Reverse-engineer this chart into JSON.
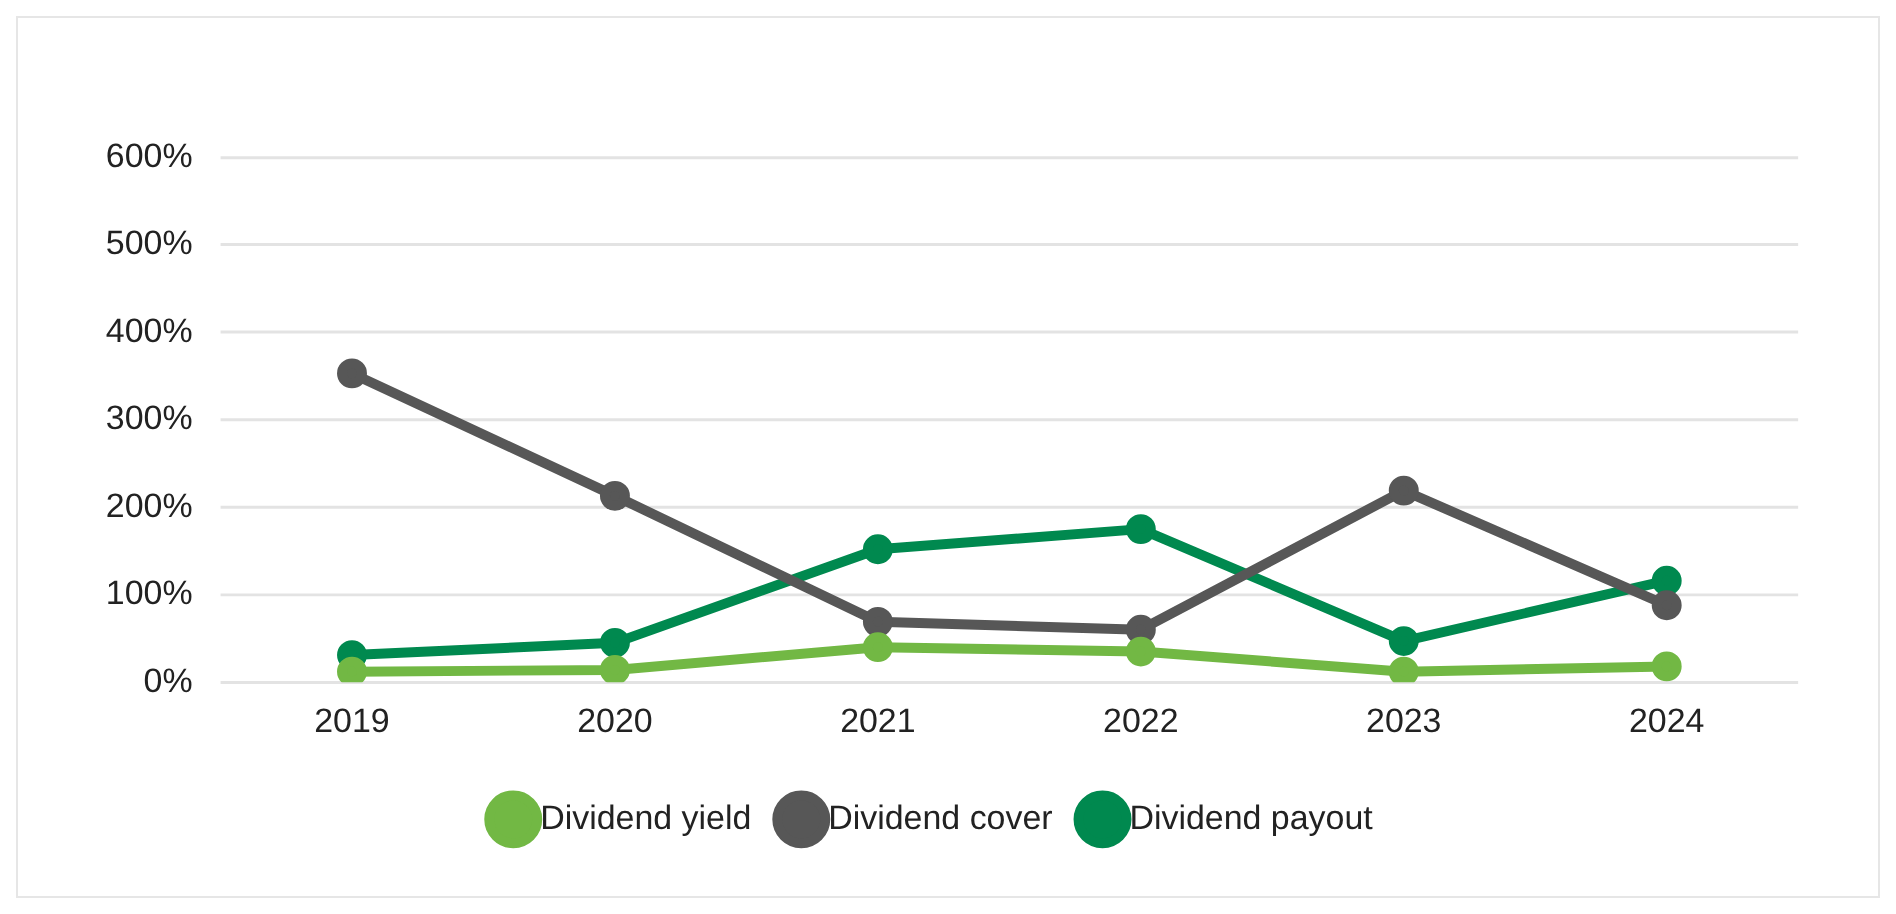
{
  "chart_data": {
    "type": "line",
    "categories": [
      "2019",
      "2020",
      "2021",
      "2022",
      "2023",
      "2024"
    ],
    "series": [
      {
        "name": "Dividend yield",
        "color": "#72b844",
        "values": [
          12,
          14,
          40,
          35,
          12,
          18
        ]
      },
      {
        "name": "Dividend cover",
        "color": "#575757",
        "values": [
          353,
          213,
          69,
          60,
          219,
          88
        ]
      },
      {
        "name": "Dividend payout",
        "color": "#00894f",
        "values": [
          31,
          45,
          152,
          175,
          47,
          116
        ]
      }
    ],
    "ylim": [
      0,
      600
    ],
    "yticks": [
      {
        "value": 0,
        "label": "0%"
      },
      {
        "value": 100,
        "label": "100%"
      },
      {
        "value": 200,
        "label": "200%"
      },
      {
        "value": 300,
        "label": "300%"
      },
      {
        "value": 400,
        "label": "400%"
      },
      {
        "value": 500,
        "label": "500%"
      },
      {
        "value": 600,
        "label": "600%"
      }
    ],
    "grid": "y",
    "legend": "bottom",
    "marker": "circle",
    "line_style": "solid"
  }
}
